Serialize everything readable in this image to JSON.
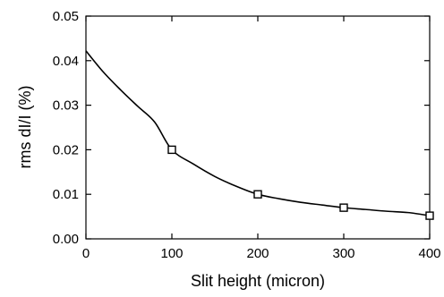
{
  "chart_data": {
    "type": "line",
    "title": "",
    "xlabel": "Slit height (micron)",
    "ylabel": "rms dI/I (%)",
    "xlim": [
      0,
      400
    ],
    "ylim": [
      0,
      0.05
    ],
    "x_ticks": [
      "0",
      "100",
      "200",
      "300",
      "400"
    ],
    "y_ticks": [
      "0.00",
      "0.01",
      "0.02",
      "0.03",
      "0.04",
      "0.05"
    ],
    "grid": false,
    "legend": "none",
    "series": [
      {
        "marker": "open-square",
        "color": "#000000",
        "points": [
          {
            "x": 100,
            "y": 0.02
          },
          {
            "x": 200,
            "y": 0.01
          },
          {
            "x": 300,
            "y": 0.007
          },
          {
            "x": 400,
            "y": 0.0052
          }
        ],
        "curve": [
          {
            "x": 0,
            "y": 0.0422
          },
          {
            "x": 20,
            "y": 0.0375
          },
          {
            "x": 40,
            "y": 0.0335
          },
          {
            "x": 60,
            "y": 0.0298
          },
          {
            "x": 80,
            "y": 0.0262
          },
          {
            "x": 100,
            "y": 0.02
          },
          {
            "x": 125,
            "y": 0.0168
          },
          {
            "x": 150,
            "y": 0.014
          },
          {
            "x": 175,
            "y": 0.0118
          },
          {
            "x": 200,
            "y": 0.01
          },
          {
            "x": 225,
            "y": 0.009
          },
          {
            "x": 250,
            "y": 0.0082
          },
          {
            "x": 275,
            "y": 0.0076
          },
          {
            "x": 300,
            "y": 0.007
          },
          {
            "x": 325,
            "y": 0.0066
          },
          {
            "x": 350,
            "y": 0.0062
          },
          {
            "x": 375,
            "y": 0.0059
          },
          {
            "x": 400,
            "y": 0.0052
          }
        ]
      }
    ]
  }
}
